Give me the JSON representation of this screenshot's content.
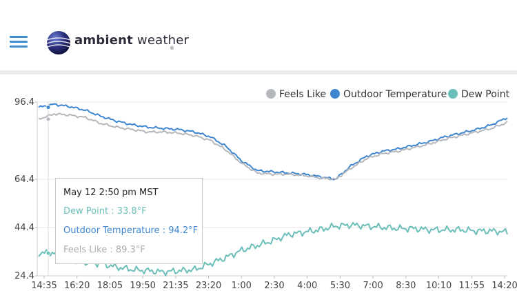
{
  "header": {
    "brand_bold": "ambient",
    "brand_light": "weather",
    "reg_mark": "®",
    "menu_icon": "hamburger-menu-icon"
  },
  "legend": [
    {
      "label": "Feels Like",
      "color": "#b4b7bc"
    },
    {
      "label": "Outdoor Temperature",
      "color": "#3e86d1"
    },
    {
      "label": "Dew Point",
      "color": "#6cbfb8"
    }
  ],
  "tooltip": {
    "date": "May 12 2:50 pm MST",
    "dew_point": "Dew Point : 33.8°F",
    "outdoor_temperature": "Outdoor Temperature : 94.2°F",
    "feels_like": "Feels Like : 89.3°F"
  },
  "chart_data": {
    "type": "line",
    "yticks": [
      "96.4",
      "64.4",
      "44.4",
      "24.4"
    ],
    "xticks": [
      "14:35",
      "16:20",
      "18:05",
      "19:50",
      "21:35",
      "23:20",
      "1:00",
      "2:30",
      "4:00",
      "5:30",
      "7:00",
      "8:30",
      "10:10",
      "11:55",
      "14:20"
    ],
    "ylim": [
      24.4,
      96.4
    ],
    "series": [
      {
        "name": "Outdoor Temperature",
        "color": "#3e86d1",
        "values": [
          94.2,
          95.5,
          94.5,
          93.0,
          90.5,
          88.5,
          87.0,
          86.0,
          85.5,
          85.0,
          84.0,
          82.0,
          78.0,
          72.0,
          68.0,
          67.5,
          67.0,
          66.5,
          65.5,
          64.4,
          70.0,
          74.0,
          76.0,
          77.0,
          78.5,
          80.0,
          82.0,
          83.5,
          85.0,
          87.0,
          90.0
        ]
      },
      {
        "name": "Feels Like",
        "color": "#b4b7bc",
        "values": [
          89.3,
          91.5,
          91.0,
          90.0,
          87.5,
          86.0,
          85.0,
          84.0,
          84.0,
          83.5,
          82.5,
          80.5,
          76.5,
          71.0,
          67.0,
          66.5,
          66.5,
          66.0,
          65.0,
          64.4,
          69.0,
          73.0,
          75.0,
          76.0,
          77.5,
          79.0,
          81.0,
          82.5,
          84.0,
          85.5,
          88.0
        ]
      },
      {
        "name": "Dew Point",
        "color": "#6cbfb8",
        "values": [
          33.8,
          34.0,
          31.0,
          30.0,
          29.5,
          28.0,
          27.0,
          26.5,
          26.0,
          26.5,
          27.0,
          29.5,
          32.0,
          35.0,
          37.0,
          39.0,
          41.5,
          42.5,
          43.5,
          45.0,
          45.5,
          45.0,
          44.5,
          44.0,
          44.0,
          43.5,
          43.5,
          43.5,
          43.0,
          43.0,
          42.5
        ]
      }
    ]
  }
}
